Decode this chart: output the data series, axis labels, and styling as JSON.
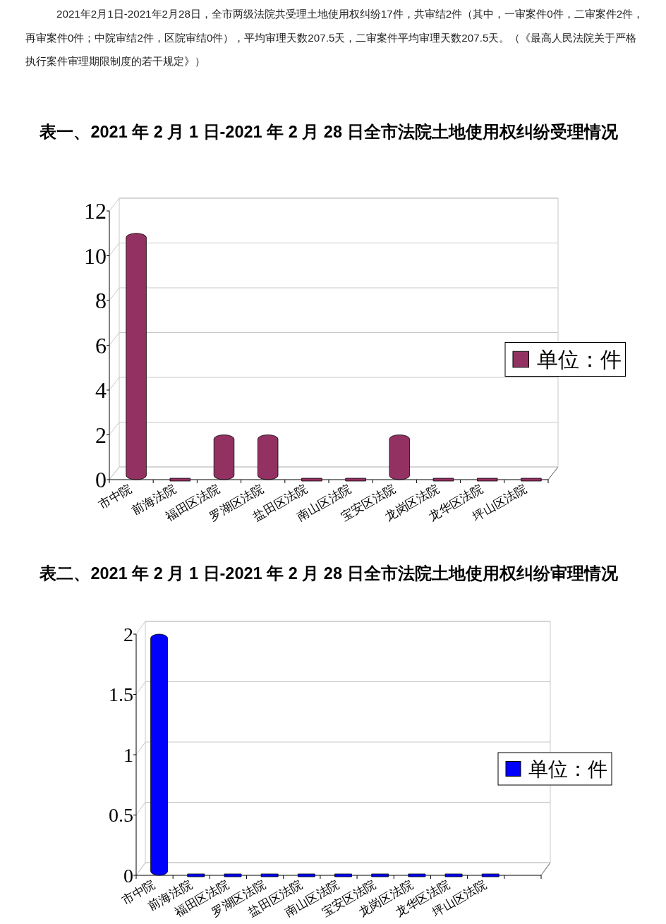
{
  "chart_data": [
    {
      "type": "bar",
      "title": "表一、2021 年 2 月 1 日-2021 年 2 月 28 日全市法院土地使用权纠纷受理情况",
      "annotations": [
        "2021年2月1日-2021年2月28日，全市两级法院共受理土地使用权纠纷17件，共审结2件（其中，一审案件0件，二审案件2件，再审案件0件；中院审结2件，区院审结0件），平均审理天数207.5天，二审案件平均审理天数207.5天。（《最高人民法院关于严格执行案件审理期限制度的若干规定》）"
      ],
      "categories": [
        "市中院",
        "前海法院",
        "福田区法院",
        "罗湖区法院",
        "盐田区法院",
        "南山区法院",
        "宝安区法院",
        "龙岗区法院",
        "龙华区法院",
        "坪山区法院"
      ],
      "series": [
        {
          "name": "单位：件",
          "color": "#943163",
          "values": [
            11,
            0,
            2,
            2,
            0,
            0,
            2,
            0,
            0,
            0
          ]
        }
      ],
      "ylim": [
        0,
        12
      ],
      "yticks": [
        0,
        2,
        4,
        6,
        8,
        10,
        12
      ],
      "grid": "y",
      "legend": "right"
    },
    {
      "type": "bar",
      "title": "表二、2021 年 2 月 1 日-2021 年 2 月 28 日全市法院土地使用权纠纷审理情况",
      "categories": [
        "市中院",
        "前海法院",
        "福田区法院",
        "罗湖区法院",
        "盐田区法院",
        "南山区法院",
        "宝安区法院",
        "龙岗区法院",
        "龙华区法院",
        "坪山区法院",
        null
      ],
      "series": [
        {
          "name": "单位：件",
          "color": "#0000ff",
          "values": [
            2,
            0,
            0,
            0,
            0,
            0,
            0,
            0,
            0,
            0,
            null
          ]
        }
      ],
      "ylim": [
        0,
        2
      ],
      "yticks": [
        0,
        0.5,
        1,
        1.5,
        2
      ],
      "grid": "y",
      "legend": "right"
    }
  ]
}
